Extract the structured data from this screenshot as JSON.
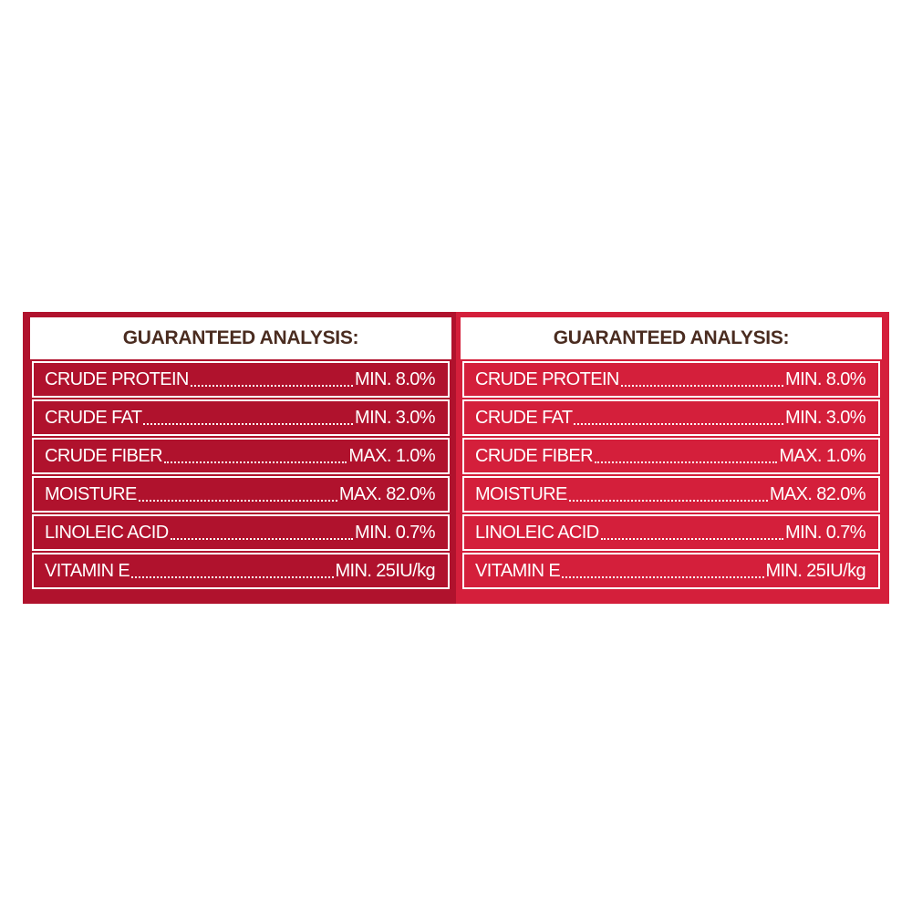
{
  "panels": [
    {
      "title": "GUARANTEED ANALYSIS:",
      "rows": [
        {
          "label": "CRUDE PROTEIN",
          "value": "MIN. 8.0%"
        },
        {
          "label": "CRUDE FAT",
          "value": "MIN. 3.0%"
        },
        {
          "label": "CRUDE FIBER",
          "value": "MAX. 1.0%"
        },
        {
          "label": "MOISTURE",
          "value": "MAX. 82.0%"
        },
        {
          "label": "LINOLEIC ACID",
          "value": "MIN. 0.7%"
        },
        {
          "label": "VITAMIN E",
          "value": "MIN. 25IU/kg"
        }
      ]
    },
    {
      "title": "GUARANTEED ANALYSIS:",
      "rows": [
        {
          "label": "CRUDE PROTEIN",
          "value": "MIN. 8.0%"
        },
        {
          "label": "CRUDE FAT",
          "value": "MIN. 3.0%"
        },
        {
          "label": "CRUDE FIBER",
          "value": "MAX. 1.0%"
        },
        {
          "label": "MOISTURE",
          "value": "MAX. 82.0%"
        },
        {
          "label": "LINOLEIC ACID",
          "value": "MIN. 0.7%"
        },
        {
          "label": "VITAMIN E",
          "value": "MIN. 25IU/kg"
        }
      ]
    }
  ]
}
